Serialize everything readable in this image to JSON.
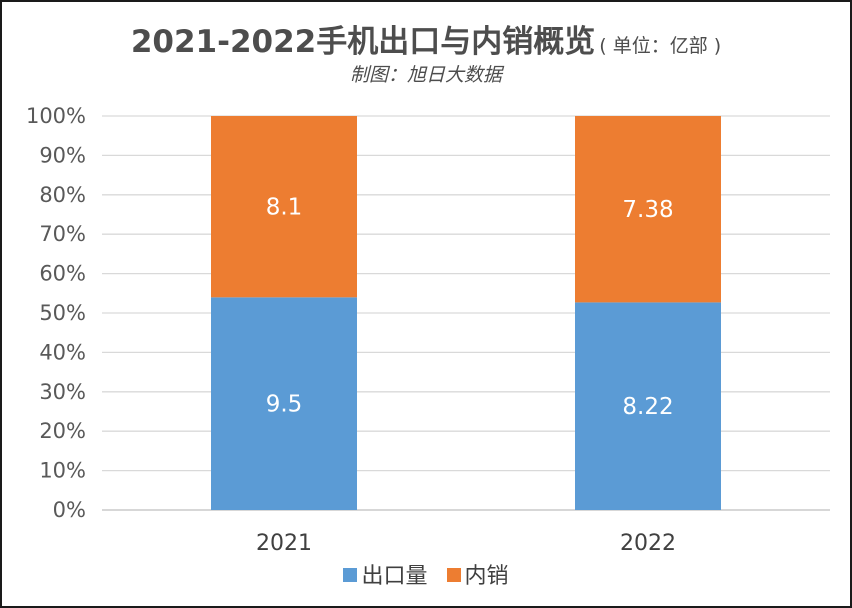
{
  "title": "2021-2022手机出口与内销概览",
  "title_unit": "( 单位：亿部 )",
  "subtitle": "制图：旭日大数据",
  "chart_data": {
    "type": "bar",
    "stacked": "percent",
    "categories": [
      "2021",
      "2022"
    ],
    "series": [
      {
        "name": "出口量",
        "color": "#5b9bd5",
        "values": [
          9.5,
          8.22
        ],
        "labels": [
          "9.5",
          "8.22"
        ]
      },
      {
        "name": "内销",
        "color": "#ed7d31",
        "values": [
          8.1,
          7.38
        ],
        "labels": [
          "8.1",
          "7.38"
        ]
      }
    ],
    "y_ticks": [
      "0%",
      "10%",
      "20%",
      "30%",
      "40%",
      "50%",
      "60%",
      "70%",
      "80%",
      "90%",
      "100%"
    ],
    "ylim": [
      0,
      100
    ],
    "grid": true,
    "legend_position": "bottom"
  }
}
